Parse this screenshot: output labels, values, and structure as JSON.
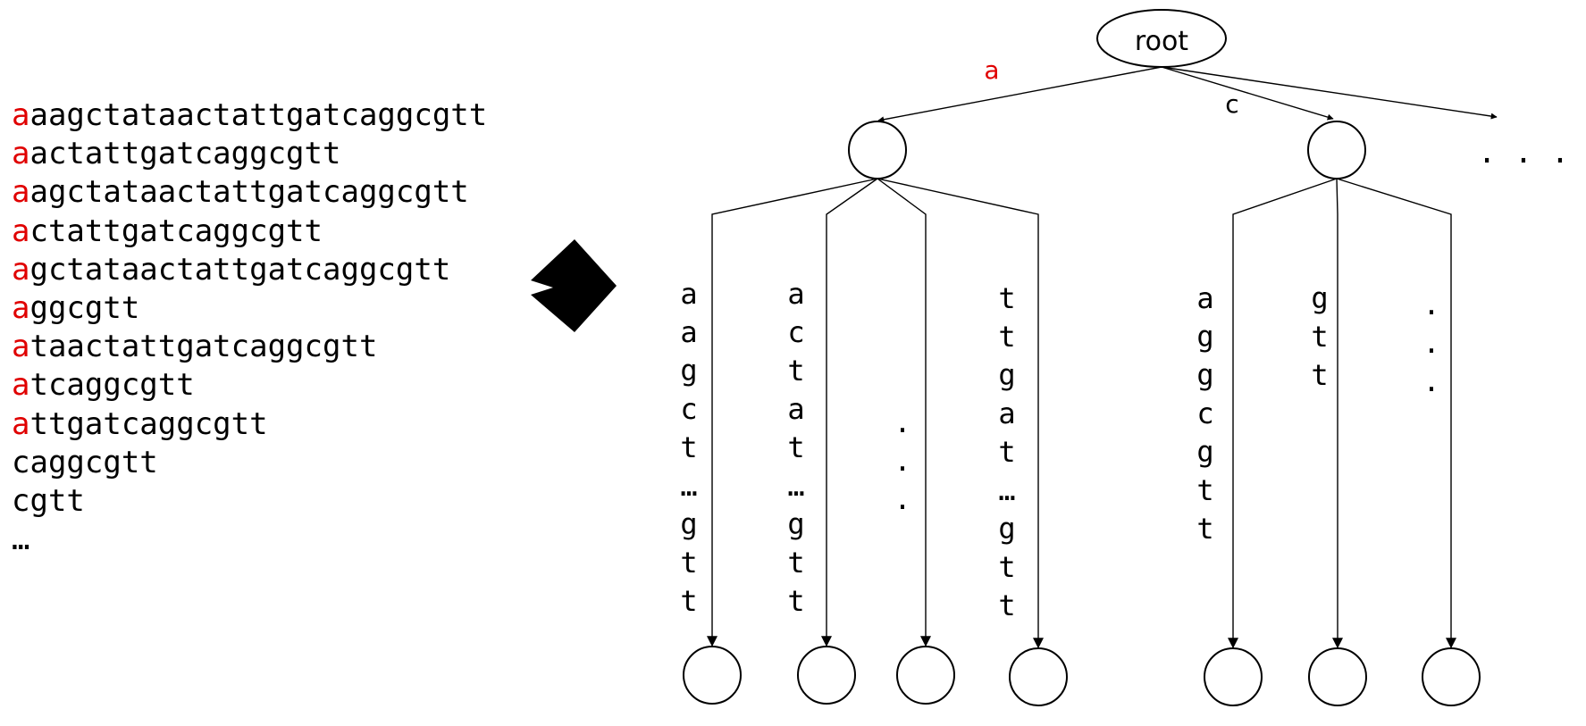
{
  "suffix_list": [
    {
      "first": "a",
      "rest": "aagctataactattgatcaggcgtt",
      "highlight": true
    },
    {
      "first": "a",
      "rest": "actattgatcaggcgtt",
      "highlight": true
    },
    {
      "first": "a",
      "rest": "agctataactattgatcaggcgtt",
      "highlight": true
    },
    {
      "first": "a",
      "rest": "ctattgatcaggcgtt",
      "highlight": true
    },
    {
      "first": "a",
      "rest": "gctataactattgatcaggcgtt",
      "highlight": true
    },
    {
      "first": "a",
      "rest": "ggcgtt",
      "highlight": true
    },
    {
      "first": "a",
      "rest": "taactattgatcaggcgtt",
      "highlight": true
    },
    {
      "first": "a",
      "rest": "tcaggcgtt",
      "highlight": true
    },
    {
      "first": "a",
      "rest": "ttgatcaggcgtt",
      "highlight": true
    },
    {
      "first": "c",
      "rest": "aggcgtt",
      "highlight": false
    },
    {
      "first": "c",
      "rest": "gtt",
      "highlight": false
    },
    {
      "first": "…",
      "rest": "",
      "highlight": false
    }
  ],
  "tree": {
    "root_label": "root",
    "edge_a_label": "a",
    "edge_c_label": "c",
    "more_siblings": ". . .",
    "branches": [
      {
        "chars": [
          "a",
          "a",
          "g",
          "c",
          "t",
          "…",
          "g",
          "t",
          "t"
        ]
      },
      {
        "chars": [
          "a",
          "c",
          "t",
          "a",
          "t",
          "…",
          "g",
          "t",
          "t"
        ]
      },
      {
        "chars": [
          ".",
          ".",
          "."
        ]
      },
      {
        "chars": [
          "t",
          "t",
          "g",
          "a",
          "t",
          "…",
          "g",
          "t",
          "t"
        ]
      },
      {
        "chars": [
          "a",
          "g",
          "g",
          "c",
          "g",
          "t",
          "t"
        ]
      },
      {
        "chars": [
          "g",
          "t",
          "t"
        ]
      },
      {
        "chars": [
          ".",
          ".",
          "."
        ]
      }
    ]
  },
  "colors": {
    "highlight": "#e00000",
    "ink": "#000000"
  }
}
